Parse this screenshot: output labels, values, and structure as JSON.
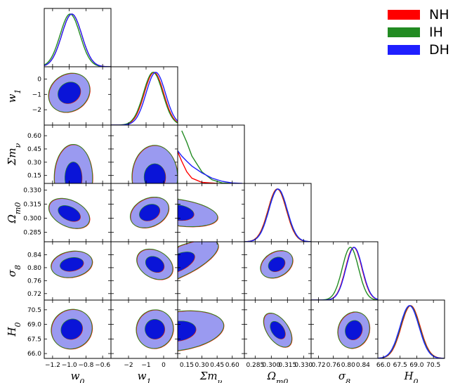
{
  "chart_data": {
    "type": "corner",
    "series": [
      {
        "name": "NH",
        "color": "#ff0000"
      },
      {
        "name": "IH",
        "color": "#228b22"
      },
      {
        "name": "DH",
        "color": "#1f1fff"
      }
    ],
    "contour_colors": {
      "outer": "#9a9af0",
      "inner": "#0a14d8"
    },
    "legend_position": "top-right",
    "parameters": [
      {
        "name": "w0",
        "label": "w_0",
        "range": [
          -1.3,
          -0.5
        ],
        "ticks": [
          -1.2,
          -1.0,
          -0.8,
          -0.6
        ],
        "tick_labels": [
          "−1.2",
          "−1.0",
          "−0.8",
          "−0.6"
        ],
        "best_fit": -0.97,
        "sigma": 0.12
      },
      {
        "name": "w1",
        "label": "w_1",
        "range": [
          -3.0,
          0.8
        ],
        "ticks": [
          -2,
          -1,
          0
        ],
        "tick_labels": [
          "−2",
          "−1",
          "0"
        ],
        "best_fit": -0.45,
        "sigma": 0.55
      },
      {
        "name": "sum_mnu",
        "label": "Σm_ν",
        "range": [
          0.06,
          0.72
        ],
        "ticks": [
          0.15,
          0.3,
          0.45,
          0.6
        ],
        "tick_labels": [
          "0.15",
          "0.30",
          "0.45",
          "0.60"
        ],
        "best_fit": 0.07,
        "sigma": 0.16
      },
      {
        "name": "omega_m0",
        "label": "Ω_m0",
        "range": [
          0.275,
          0.337
        ],
        "ticks": [
          0.285,
          0.3,
          0.315,
          0.33
        ],
        "tick_labels": [
          "0.285",
          "0.300",
          "0.315",
          "0.330"
        ],
        "best_fit": 0.306,
        "sigma": 0.0085
      },
      {
        "name": "sigma8",
        "label": "σ_8",
        "range": [
          0.7,
          0.88
        ],
        "ticks": [
          0.72,
          0.76,
          0.8,
          0.84
        ],
        "tick_labels": [
          "0.72",
          "0.76",
          "0.80",
          "0.84"
        ],
        "best_fit": 0.81,
        "sigma": 0.022
      },
      {
        "name": "H0",
        "label": "H_0",
        "range": [
          65.5,
          71.5
        ],
        "ticks": [
          66.0,
          67.5,
          69.0,
          70.5
        ],
        "tick_labels": [
          "66.0",
          "67.5",
          "69.0",
          "70.5"
        ],
        "best_fit": 68.4,
        "sigma": 0.85
      }
    ],
    "marginals_1d": [
      {
        "param": "w0",
        "shift": {
          "NH": 0.0,
          "IH": -0.02,
          "DH": 0.0
        }
      },
      {
        "param": "w1",
        "shift": {
          "NH": -0.1,
          "IH": -0.15,
          "DH": 0.0
        }
      },
      {
        "param": "sum_mnu",
        "curves": {
          "NH": [
            [
              0.06,
              0.6
            ],
            [
              0.1,
              0.42
            ],
            [
              0.15,
              0.22
            ],
            [
              0.2,
              0.1
            ],
            [
              0.3,
              0.02
            ],
            [
              0.45,
              0.0
            ]
          ],
          "IH": [
            [
              0.1,
              1.0
            ],
            [
              0.15,
              0.78
            ],
            [
              0.2,
              0.52
            ],
            [
              0.3,
              0.22
            ],
            [
              0.4,
              0.07
            ],
            [
              0.5,
              0.01
            ],
            [
              0.6,
              0.0
            ]
          ],
          "DH": [
            [
              0.06,
              0.62
            ],
            [
              0.1,
              0.52
            ],
            [
              0.15,
              0.42
            ],
            [
              0.2,
              0.33
            ],
            [
              0.3,
              0.2
            ],
            [
              0.4,
              0.1
            ],
            [
              0.5,
              0.04
            ],
            [
              0.6,
              0.01
            ],
            [
              0.7,
              0.0
            ]
          ]
        }
      },
      {
        "param": "omega_m0",
        "shift": {
          "NH": -0.0005,
          "IH": 0.0,
          "DH": 0.0003
        }
      },
      {
        "param": "sigma8",
        "shift": {
          "NH": 0.005,
          "IH": -0.004,
          "DH": 0.006
        }
      },
      {
        "param": "H0",
        "shift": {
          "NH": 0.05,
          "IH": 0.0,
          "DH": -0.05
        }
      }
    ],
    "contours_2d": [
      {
        "x": "w0",
        "y": "w1",
        "cx": -1.0,
        "cy": -0.9,
        "rx68": 0.14,
        "ry68": 0.65,
        "rx95": 0.26,
        "ry95": 1.2,
        "rot_deg": 35
      },
      {
        "x": "w0",
        "y": "sum_mnu",
        "cx": -0.95,
        "cy": 0.12,
        "rx68": 0.1,
        "ry68": 0.18,
        "rx95": 0.23,
        "ry95": 0.38,
        "rot_deg": 0,
        "floor": 0.06
      },
      {
        "x": "w0",
        "y": "omega_m0",
        "cx": -1.0,
        "cy": 0.305,
        "rx68": 0.14,
        "ry68": 0.007,
        "rx95": 0.26,
        "ry95": 0.014,
        "rot_deg": -25
      },
      {
        "x": "w0",
        "y": "sigma8",
        "cx": -0.97,
        "cy": 0.81,
        "rx68": 0.14,
        "ry68": 0.02,
        "rx95": 0.25,
        "ry95": 0.04,
        "rot_deg": 10
      },
      {
        "x": "w0",
        "y": "H0",
        "cx": -0.97,
        "cy": 68.5,
        "rx68": 0.13,
        "ry68": 1.0,
        "rx95": 0.25,
        "ry95": 2.0,
        "rot_deg": 30
      },
      {
        "x": "w1",
        "y": "sum_mnu",
        "cx": -0.5,
        "cy": 0.13,
        "rx68": 0.6,
        "ry68": 0.15,
        "rx95": 1.3,
        "ry95": 0.36,
        "rot_deg": 0,
        "floor": 0.06
      },
      {
        "x": "w1",
        "y": "omega_m0",
        "cx": -0.8,
        "cy": 0.306,
        "rx68": 0.6,
        "ry68": 0.008,
        "rx95": 1.15,
        "ry95": 0.015,
        "rot_deg": 25
      },
      {
        "x": "w1",
        "y": "sigma8",
        "cx": -0.5,
        "cy": 0.81,
        "rx68": 0.55,
        "ry68": 0.022,
        "rx95": 1.1,
        "ry95": 0.042,
        "rot_deg": -30
      },
      {
        "x": "w1",
        "y": "H0",
        "cx": -0.5,
        "cy": 68.5,
        "rx68": 0.55,
        "ry68": 1.0,
        "rx95": 1.05,
        "ry95": 2.0,
        "rot_deg": -20
      },
      {
        "x": "sum_mnu",
        "y": "omega_m0",
        "cx": 0.06,
        "cy": 0.306,
        "rx68": 0.16,
        "ry68": 0.008,
        "rx95": 0.4,
        "ry95": 0.014,
        "rot_deg": -8,
        "left_clip": 0.06
      },
      {
        "x": "sum_mnu",
        "y": "sigma8",
        "cx": 0.06,
        "cy": 0.815,
        "rx68": 0.18,
        "ry68": 0.025,
        "rx95": 0.44,
        "ry95": 0.045,
        "rot_deg": 25,
        "left_clip": 0.06
      },
      {
        "x": "sum_mnu",
        "y": "H0",
        "cx": 0.06,
        "cy": 68.3,
        "rx68": 0.18,
        "ry68": 1.0,
        "rx95": 0.46,
        "ry95": 2.0,
        "rot_deg": 8,
        "left_clip": 0.06
      },
      {
        "x": "omega_m0",
        "y": "sigma8",
        "cx": 0.305,
        "cy": 0.81,
        "rx68": 0.008,
        "ry68": 0.02,
        "rx95": 0.016,
        "ry95": 0.038,
        "rot_deg": 30
      },
      {
        "x": "omega_m0",
        "y": "H0",
        "cx": 0.306,
        "cy": 68.4,
        "rx68": 0.009,
        "ry68": 0.6,
        "rx95": 0.018,
        "ry95": 1.1,
        "rot_deg": -55
      },
      {
        "x": "sigma8",
        "y": "H0",
        "cx": 0.815,
        "cy": 68.4,
        "rx68": 0.022,
        "ry68": 1.0,
        "rx95": 0.042,
        "ry95": 1.9,
        "rot_deg": -20
      }
    ]
  }
}
